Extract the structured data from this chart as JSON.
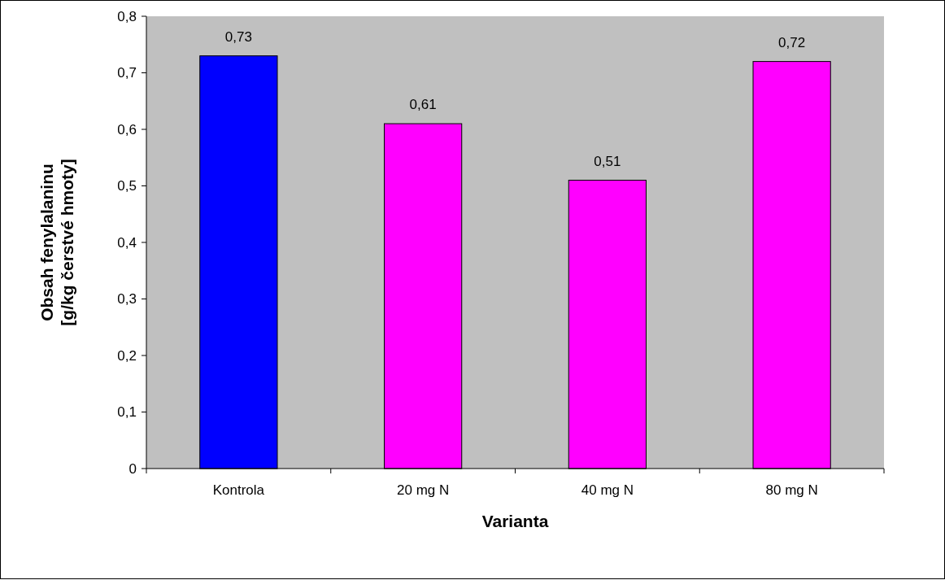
{
  "chart_data": {
    "type": "bar",
    "xlabel": "Varianta",
    "ylabel": "Obsah fenylalaninu\n[g/kg čerstvé hmoty]",
    "categories": [
      "Kontrola",
      "20 mg N",
      "40 mg N",
      "80 mg N"
    ],
    "values": [
      0.73,
      0.61,
      0.51,
      0.72
    ],
    "colors": [
      "#0000ff",
      "#ff00ff",
      "#ff00ff",
      "#ff00ff"
    ],
    "ylim": [
      0,
      0.8
    ],
    "yticks": [
      {
        "value": 0,
        "label": "0"
      },
      {
        "value": 0.1,
        "label": "0,1"
      },
      {
        "value": 0.2,
        "label": "0,2"
      },
      {
        "value": 0.3,
        "label": "0,3"
      },
      {
        "value": 0.4,
        "label": "0,4"
      },
      {
        "value": 0.5,
        "label": "0,5"
      },
      {
        "value": 0.6,
        "label": "0,6"
      },
      {
        "value": 0.7,
        "label": "0,7"
      },
      {
        "value": 0.8,
        "label": "0,8"
      }
    ],
    "value_labels": [
      "0,73",
      "0,61",
      "0,51",
      "0,72"
    ],
    "grid": false
  }
}
